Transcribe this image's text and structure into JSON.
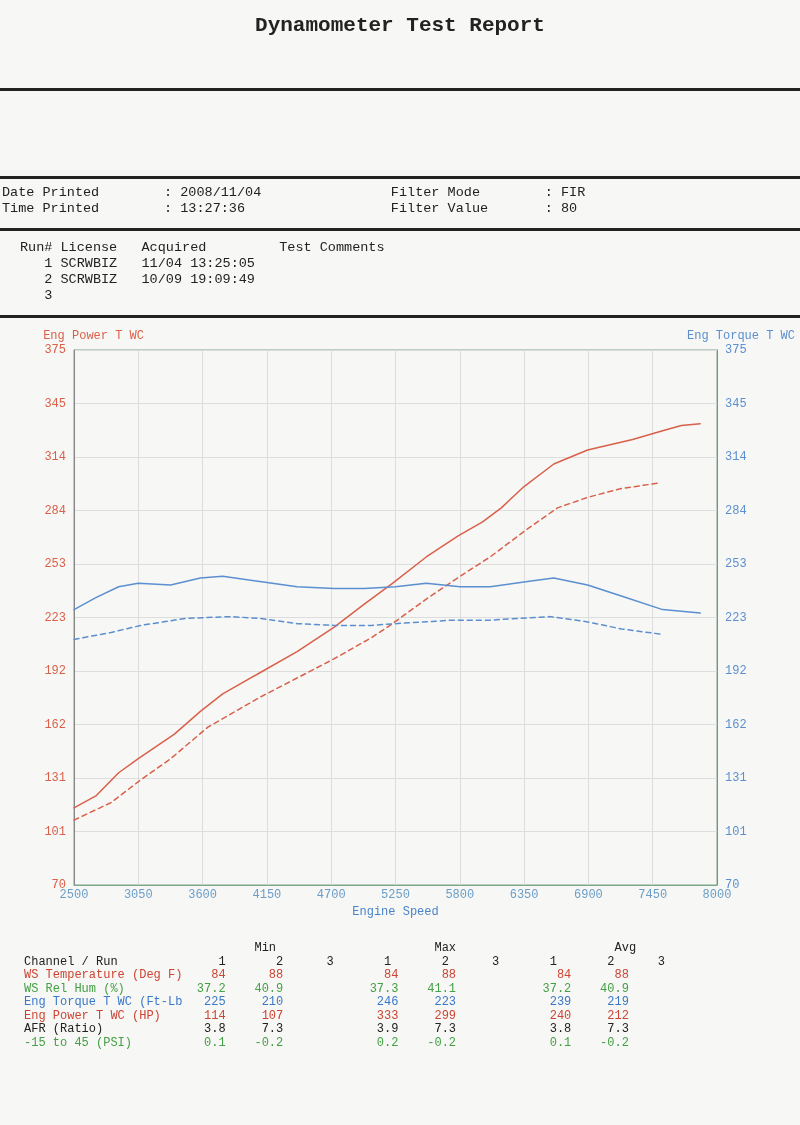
{
  "chart_data": {
    "type": "line",
    "title": "Dynamometer Test Report",
    "xlabel": "Engine Speed",
    "ylabel": "Eng Power T WC",
    "y2label": "Eng Torque T WC",
    "annotations": [
      "Date Printed        : 2008/11/04                Filter Mode        : FIR",
      "Time Printed        : 13:27:36                  Filter Value       : 80",
      "Run# License   Acquired         Test Comments",
      "   1 SCRWBIZ   11/04 13:25:05",
      "   2 SCRWBIZ   10/09 19:09:49",
      "   3",
      "                                Min                      Max                      Avg",
      "Channel / Run              1       2      3       1       2      3       1       2      3",
      "WS Temperature (Deg F)    84      88              84      88              84      88",
      "WS Rel Hum (%)          37.2    40.9            37.3    41.1            37.2    40.9",
      "Eng Torque T WC (Ft-Lb   225     210             246     223             239     219",
      "Eng Power T WC (HP)      114     107             333     299             240     212",
      "AFR (Ratio)              3.8     7.3             3.9     7.3             3.8     7.3",
      "-15 to 45 (PSI)          0.1    -0.2             0.2    -0.2             0.1    -0.2"
    ],
    "xlim": [
      2500,
      8000
    ],
    "xticks": [
      2500,
      3050,
      3600,
      4150,
      4700,
      5250,
      5800,
      6350,
      6900,
      7450,
      8000
    ],
    "ylim": [
      70,
      375
    ],
    "yticks": [
      70,
      {
        "value": 100.5,
        "label": "101"
      },
      131,
      {
        "value": 161.5,
        "label": "162"
      },
      192,
      {
        "value": 222.5,
        "label": "223"
      },
      253,
      {
        "value": 283.5,
        "label": "284"
      },
      314,
      {
        "value": 344.5,
        "label": "345"
      },
      375
    ],
    "y2lim": [
      70,
      375
    ],
    "y2ticks": [
      70,
      {
        "value": 100.5,
        "label": "101"
      },
      131,
      {
        "value": 161.5,
        "label": "162"
      },
      192,
      {
        "value": 222.5,
        "label": "223"
      },
      253,
      {
        "value": 283.5,
        "label": "284"
      },
      314,
      {
        "value": 344.5,
        "label": "345"
      },
      375
    ],
    "grid": true,
    "marker": "none",
    "series": [
      {
        "color": "#d9604a",
        "line_style": "solid",
        "x": [
          2500,
          2691,
          2882,
          3050,
          3359,
          3581,
          3772,
          4090,
          4408,
          4726,
          4980,
          5224,
          5513,
          5786,
          5995,
          6155,
          6347,
          6604,
          6893,
          7278,
          7535,
          7695,
          7856
        ],
        "values": [
          114,
          121,
          134,
          142,
          156,
          169,
          179,
          191,
          203,
          217,
          230,
          242,
          257,
          269,
          277,
          285,
          297,
          310,
          318,
          324,
          329,
          332,
          333
        ]
      },
      {
        "color": "#d9604a",
        "line_style": "dashed",
        "x": [
          2500,
          2818,
          3072,
          3327,
          3645,
          4090,
          4408,
          4726,
          5044,
          5224,
          5513,
          5802,
          6059,
          6379,
          6636,
          6893,
          7182,
          7487
        ],
        "values": [
          107,
          117,
          130,
          142,
          160,
          177,
          188,
          199,
          211,
          219,
          233,
          246,
          257,
          273,
          285,
          291,
          296,
          299
        ]
      },
      {
        "color": "#5b8fd0",
        "line_style": "solid",
        "axis": "y2",
        "x": [
          2500,
          2691,
          2882,
          3050,
          3327,
          3581,
          3772,
          4090,
          4408,
          4726,
          4980,
          5250,
          5513,
          5802,
          6059,
          6379,
          6604,
          6893,
          7214,
          7535,
          7856
        ],
        "values": [
          227,
          234,
          240,
          242,
          241,
          245,
          246,
          243,
          240,
          239,
          239,
          240,
          242,
          240,
          240,
          243,
          245,
          241,
          234,
          227,
          225
        ]
      },
      {
        "color": "#5b8fd0",
        "line_style": "dashed",
        "axis": "y2",
        "x": [
          2500,
          2818,
          3072,
          3454,
          3836,
          4090,
          4408,
          4726,
          5044,
          5250,
          5738,
          6059,
          6572,
          6893,
          7182,
          7519
        ],
        "values": [
          210,
          214,
          218,
          222,
          223,
          222,
          219,
          218,
          218,
          219,
          221,
          221,
          223,
          220,
          216,
          213
        ]
      }
    ]
  }
}
